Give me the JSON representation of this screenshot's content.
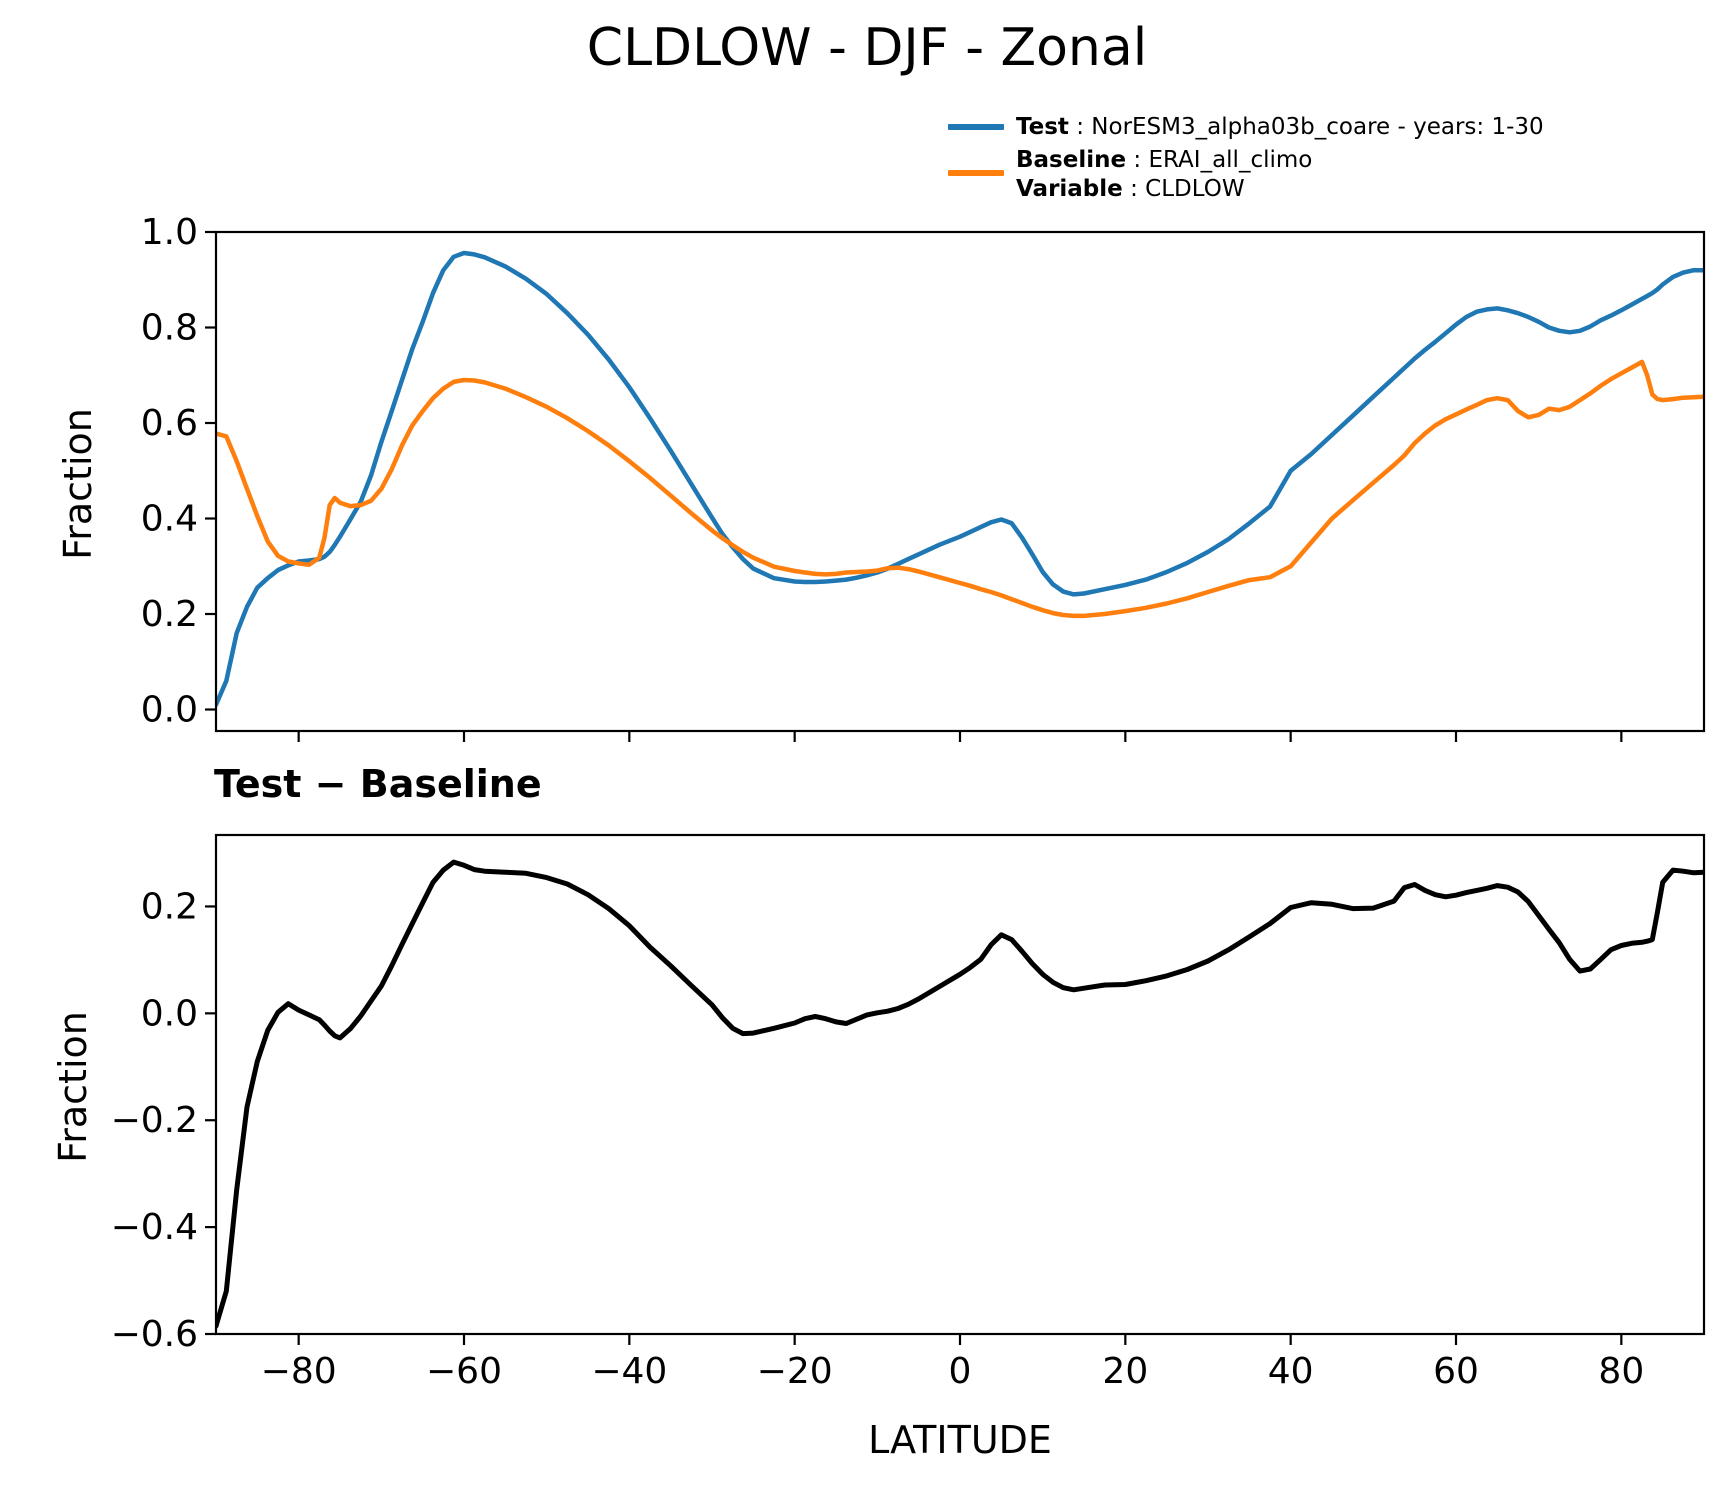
{
  "title": "CLDLOW - DJF - Zonal",
  "legend": {
    "test_bold": "Test",
    "test_rest": " : NorESM3_alpha03b_coare - years: 1-30",
    "baseline_bold": "Baseline",
    "baseline_rest": " : ERAI_all_climo",
    "variable_bold": "Variable",
    "variable_rest": " : CLDLOW"
  },
  "colors": {
    "test": "#1f77b4",
    "baseline": "#ff7f0e",
    "difference": "#000000",
    "axis": "#000000"
  },
  "top_panel": {
    "ylabel": "Fraction",
    "ytick_values": [
      0.0,
      0.2,
      0.4,
      0.6,
      0.8,
      1.0
    ],
    "ytick_labels": [
      "0.0",
      "0.2",
      "0.4",
      "0.6",
      "0.8",
      "1.0"
    ],
    "xtick_values": [
      -80,
      -60,
      -40,
      -20,
      0,
      20,
      40,
      60,
      80
    ],
    "ylim": [
      -0.045,
      1.0
    ],
    "xlim": [
      -90,
      90
    ]
  },
  "bottom_panel": {
    "subtitle": "Test − Baseline",
    "ylabel": "Fraction",
    "xlabel": "LATITUDE",
    "ytick_values": [
      0.2,
      0.0,
      -0.2,
      -0.4,
      -0.6
    ],
    "ytick_labels": [
      "0.2",
      "0.0",
      "−0.2",
      "−0.4",
      "−0.6"
    ],
    "xtick_values": [
      -80,
      -60,
      -40,
      -20,
      0,
      20,
      40,
      60,
      80
    ],
    "xtick_labels": [
      "−80",
      "−60",
      "−40",
      "−20",
      "0",
      "20",
      "40",
      "60",
      "80"
    ],
    "ylim": [
      -0.6,
      0.3337
    ],
    "xlim": [
      -90,
      90
    ]
  },
  "chart_data": [
    {
      "type": "line",
      "panel": "top",
      "title": "CLDLOW - DJF - Zonal",
      "xlabel": "LATITUDE",
      "ylabel": "Fraction",
      "xlim": [
        -90,
        90
      ],
      "ylim": [
        -0.045,
        1.0
      ],
      "grid": false,
      "legend_position": "top-right-outside",
      "x": [
        -90,
        -88.75,
        -87.5,
        -86.25,
        -85,
        -83.75,
        -82.5,
        -81.25,
        -80,
        -78.75,
        -77.5,
        -76.875,
        -76.25,
        -75.625,
        -75,
        -73.75,
        -72.5,
        -71.25,
        -70,
        -68.75,
        -67.5,
        -66.25,
        -65,
        -63.75,
        -62.5,
        -61.25,
        -60,
        -58.75,
        -57.5,
        -55,
        -52.5,
        -50,
        -47.5,
        -45,
        -42.5,
        -40,
        -37.5,
        -35,
        -32.5,
        -30,
        -28.75,
        -27.5,
        -26.25,
        -25,
        -22.5,
        -20,
        -18.75,
        -17.5,
        -16.25,
        -15,
        -13.75,
        -12.5,
        -11.25,
        -10,
        -8.75,
        -7.5,
        -6.25,
        -5,
        -2.5,
        0,
        1.25,
        2.5,
        3.75,
        5,
        6.25,
        7.5,
        8.75,
        10,
        11.25,
        12.5,
        13.75,
        15,
        17.5,
        20,
        22.5,
        25,
        27.5,
        30,
        32.5,
        35,
        37.5,
        40,
        42.5,
        45,
        47.5,
        50,
        52.5,
        53.75,
        55,
        56.25,
        57.5,
        58.75,
        60,
        61.25,
        62.5,
        63.75,
        65,
        66.25,
        67.5,
        68.75,
        70,
        71.25,
        72.5,
        73.75,
        75,
        76.25,
        77.5,
        78.75,
        80,
        81.25,
        82.5,
        83.125,
        83.75,
        84.375,
        85,
        86.25,
        87.5,
        88.75,
        90
      ],
      "series": [
        {
          "name": "Test : NorESM3_alpha03b_coare - years: 1-30",
          "color": "#1f77b4",
          "values": [
            0.01,
            0.06,
            0.16,
            0.215,
            0.255,
            0.275,
            0.292,
            0.302,
            0.31,
            0.312,
            0.315,
            0.32,
            0.33,
            0.345,
            0.362,
            0.398,
            0.435,
            0.49,
            0.56,
            0.625,
            0.69,
            0.755,
            0.812,
            0.872,
            0.92,
            0.948,
            0.956,
            0.953,
            0.947,
            0.928,
            0.902,
            0.87,
            0.83,
            0.785,
            0.733,
            0.675,
            0.61,
            0.542,
            0.472,
            0.402,
            0.368,
            0.34,
            0.315,
            0.295,
            0.275,
            0.268,
            0.267,
            0.267,
            0.268,
            0.27,
            0.272,
            0.276,
            0.281,
            0.287,
            0.295,
            0.305,
            0.315,
            0.325,
            0.345,
            0.362,
            0.372,
            0.382,
            0.392,
            0.398,
            0.39,
            0.36,
            0.325,
            0.288,
            0.262,
            0.247,
            0.241,
            0.243,
            0.252,
            0.261,
            0.272,
            0.288,
            0.307,
            0.33,
            0.357,
            0.39,
            0.425,
            0.5,
            0.535,
            0.575,
            0.615,
            0.655,
            0.695,
            0.715,
            0.735,
            0.753,
            0.77,
            0.788,
            0.806,
            0.822,
            0.833,
            0.838,
            0.84,
            0.836,
            0.83,
            0.822,
            0.812,
            0.8,
            0.793,
            0.79,
            0.793,
            0.802,
            0.815,
            0.825,
            0.836,
            0.848,
            0.86,
            0.866,
            0.872,
            0.88,
            0.89,
            0.906,
            0.915,
            0.92,
            0.92
          ]
        },
        {
          "name": "Baseline : ERAI_all_climo",
          "color": "#ff7f0e",
          "values": [
            0.578,
            0.572,
            0.52,
            0.462,
            0.405,
            0.352,
            0.322,
            0.31,
            0.306,
            0.303,
            0.318,
            0.36,
            0.428,
            0.443,
            0.433,
            0.426,
            0.428,
            0.437,
            0.462,
            0.503,
            0.553,
            0.595,
            0.625,
            0.652,
            0.672,
            0.686,
            0.69,
            0.689,
            0.685,
            0.672,
            0.654,
            0.634,
            0.61,
            0.583,
            0.553,
            0.52,
            0.485,
            0.448,
            0.411,
            0.375,
            0.359,
            0.344,
            0.33,
            0.318,
            0.299,
            0.29,
            0.287,
            0.284,
            0.283,
            0.284,
            0.287,
            0.288,
            0.289,
            0.291,
            0.296,
            0.297,
            0.294,
            0.289,
            0.277,
            0.265,
            0.259,
            0.252,
            0.246,
            0.239,
            0.231,
            0.223,
            0.215,
            0.208,
            0.202,
            0.198,
            0.196,
            0.196,
            0.2,
            0.206,
            0.213,
            0.222,
            0.233,
            0.246,
            0.259,
            0.271,
            0.277,
            0.3,
            0.35,
            0.4,
            0.438,
            0.475,
            0.512,
            0.532,
            0.558,
            0.578,
            0.595,
            0.608,
            0.618,
            0.628,
            0.638,
            0.648,
            0.652,
            0.648,
            0.625,
            0.612,
            0.617,
            0.63,
            0.627,
            0.634,
            0.648,
            0.662,
            0.678,
            0.692,
            0.704,
            0.716,
            0.728,
            0.7,
            0.66,
            0.65,
            0.648,
            0.65,
            0.653,
            0.654,
            0.655
          ]
        }
      ]
    },
    {
      "type": "line",
      "panel": "bottom",
      "title": "Test − Baseline",
      "xlabel": "LATITUDE",
      "ylabel": "Fraction",
      "xlim": [
        -90,
        90
      ],
      "ylim": [
        -0.6,
        0.3337
      ],
      "grid": false,
      "x": [
        -90,
        -88.75,
        -87.5,
        -86.25,
        -85,
        -83.75,
        -82.5,
        -81.25,
        -80,
        -78.75,
        -77.5,
        -76.875,
        -76.25,
        -75.625,
        -75,
        -73.75,
        -72.5,
        -71.25,
        -70,
        -68.75,
        -67.5,
        -66.25,
        -65,
        -63.75,
        -62.5,
        -61.25,
        -60,
        -58.75,
        -57.5,
        -55,
        -52.5,
        -50,
        -47.5,
        -45,
        -42.5,
        -40,
        -37.5,
        -35,
        -32.5,
        -30,
        -28.75,
        -27.5,
        -26.25,
        -25,
        -22.5,
        -20,
        -18.75,
        -17.5,
        -16.25,
        -15,
        -13.75,
        -12.5,
        -11.25,
        -10,
        -8.75,
        -7.5,
        -6.25,
        -5,
        -2.5,
        0,
        1.25,
        2.5,
        3.75,
        5,
        6.25,
        7.5,
        8.75,
        10,
        11.25,
        12.5,
        13.75,
        15,
        17.5,
        20,
        22.5,
        25,
        27.5,
        30,
        32.5,
        35,
        37.5,
        40,
        42.5,
        45,
        47.5,
        50,
        52.5,
        53.75,
        55,
        56.25,
        57.5,
        58.75,
        60,
        61.25,
        62.5,
        63.75,
        65,
        66.25,
        67.5,
        68.75,
        70,
        71.25,
        72.5,
        73.75,
        75,
        76.25,
        77.5,
        78.75,
        80,
        81.25,
        82.5,
        83.125,
        83.75,
        84.375,
        85,
        86.25,
        87.5,
        88.75,
        90
      ],
      "series": [
        {
          "name": "Test − Baseline",
          "color": "#000000",
          "values": [
            -0.585,
            -0.52,
            -0.33,
            -0.175,
            -0.09,
            -0.032,
            0.002,
            0.018,
            0.006,
            -0.003,
            -0.012,
            -0.022,
            -0.033,
            -0.042,
            -0.046,
            -0.029,
            -0.005,
            0.023,
            0.051,
            0.089,
            0.129,
            0.168,
            0.207,
            0.245,
            0.268,
            0.283,
            0.277,
            0.269,
            0.266,
            0.264,
            0.262,
            0.254,
            0.242,
            0.222,
            0.196,
            0.164,
            0.124,
            0.089,
            0.052,
            0.016,
            -0.008,
            -0.028,
            -0.038,
            -0.037,
            -0.028,
            -0.018,
            -0.01,
            -0.006,
            -0.01,
            -0.016,
            -0.019,
            -0.011,
            -0.003,
            0.001,
            0.004,
            0.009,
            0.017,
            0.027,
            0.05,
            0.073,
            0.086,
            0.101,
            0.128,
            0.147,
            0.138,
            0.116,
            0.093,
            0.073,
            0.058,
            0.048,
            0.044,
            0.047,
            0.053,
            0.054,
            0.061,
            0.07,
            0.082,
            0.098,
            0.119,
            0.143,
            0.168,
            0.198,
            0.207,
            0.204,
            0.196,
            0.197,
            0.21,
            0.235,
            0.241,
            0.23,
            0.222,
            0.218,
            0.221,
            0.226,
            0.23,
            0.234,
            0.239,
            0.236,
            0.227,
            0.209,
            0.183,
            0.157,
            0.132,
            0.101,
            0.079,
            0.083,
            0.101,
            0.119,
            0.127,
            0.131,
            0.133,
            0.135,
            0.138,
            0.19,
            0.245,
            0.268,
            0.266,
            0.263,
            0.264
          ]
        }
      ]
    }
  ]
}
